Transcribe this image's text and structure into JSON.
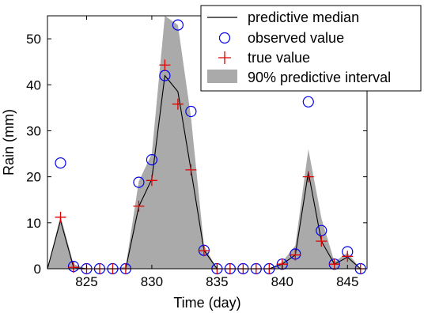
{
  "chart_data": {
    "type": "line",
    "xlabel": "Time (day)",
    "ylabel": "Rain (mm)",
    "xlim": [
      822,
      846.5
    ],
    "ylim": [
      0,
      55
    ],
    "xticks": [
      825,
      830,
      835,
      840,
      845
    ],
    "yticks": [
      0,
      10,
      20,
      30,
      40,
      50
    ],
    "grid": false,
    "legend_position": "top-right",
    "x": [
      822,
      823,
      824,
      825,
      826,
      827,
      828,
      829,
      830,
      831,
      832,
      833,
      834,
      835,
      836,
      837,
      838,
      839,
      840,
      841,
      842,
      843,
      844,
      845,
      846
    ],
    "series": [
      {
        "name": "predictive median",
        "style": "line",
        "color": "#000000",
        "values": [
          0,
          10.5,
          0.3,
          0,
          0,
          0,
          0,
          13.5,
          19.5,
          42,
          38.5,
          21.5,
          4,
          0,
          0,
          0,
          0,
          0,
          1,
          3,
          21,
          6,
          1,
          2.5,
          0
        ]
      },
      {
        "name": "observed value",
        "style": "circle",
        "color": "#0000ee",
        "x": [
          823,
          824,
          825,
          826,
          827,
          828,
          829,
          830,
          831,
          832,
          833,
          834,
          835,
          836,
          837,
          838,
          839,
          840,
          841,
          842,
          843,
          844,
          845,
          846
        ],
        "values": [
          23,
          0.5,
          0,
          0,
          0,
          0,
          18.8,
          23.7,
          42,
          53,
          34.2,
          4,
          0,
          0,
          0,
          0,
          0,
          1,
          3.2,
          36.3,
          8.3,
          1,
          3.7,
          0
        ]
      },
      {
        "name": "true value",
        "style": "plus",
        "color": "#dd0000",
        "x": [
          823,
          824,
          825,
          826,
          827,
          828,
          829,
          830,
          831,
          832,
          833,
          834,
          835,
          836,
          837,
          838,
          839,
          840,
          841,
          842,
          843,
          844,
          845,
          846
        ],
        "values": [
          11.2,
          0.3,
          0,
          0,
          0,
          0,
          13.6,
          19.2,
          44.3,
          35.8,
          21.5,
          3.9,
          0,
          0,
          0,
          0,
          0,
          1,
          3,
          20,
          6,
          1,
          2.7,
          0
        ]
      },
      {
        "name": "90% predictive interval",
        "style": "band",
        "color": "#aaaaaa",
        "lower": [
          0,
          0,
          0,
          0,
          0,
          0,
          0,
          0,
          0,
          0,
          0,
          0,
          0,
          0,
          0,
          0,
          0,
          0,
          0,
          0,
          0,
          0,
          0,
          0,
          0
        ],
        "upper": [
          0,
          11.5,
          1,
          0,
          0,
          0,
          0.5,
          19,
          25,
          55,
          53,
          33,
          5,
          0,
          0,
          0,
          0,
          0,
          1.5,
          5,
          26,
          11,
          1.5,
          3.5,
          0
        ]
      }
    ]
  }
}
